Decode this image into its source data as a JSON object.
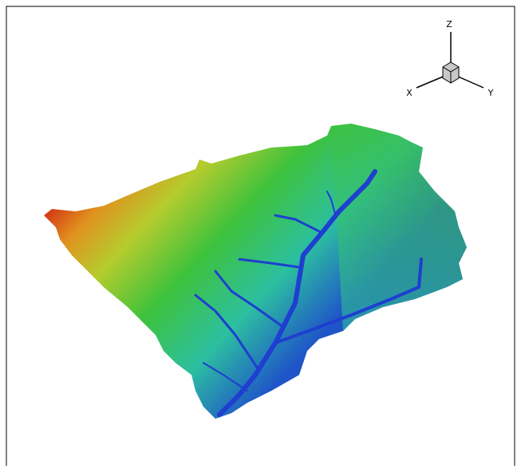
{
  "axes": {
    "z": "Z",
    "x": "X",
    "y": "Y"
  }
}
